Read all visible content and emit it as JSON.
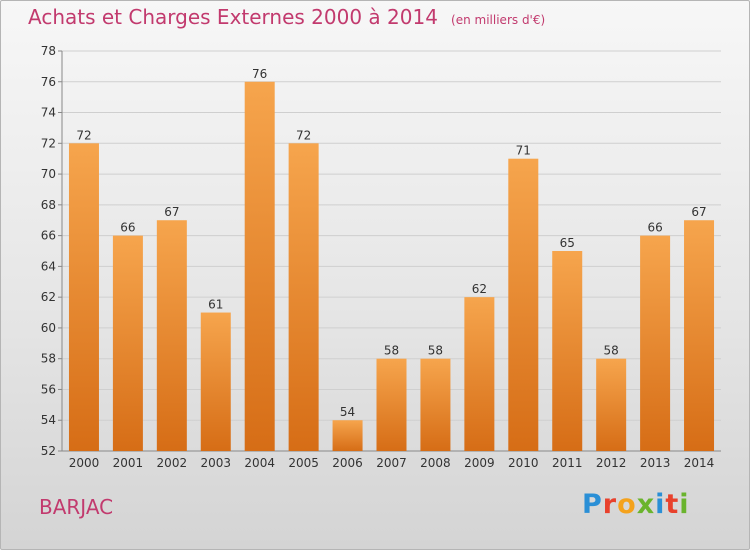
{
  "header": {
    "title": "Achats et Charges Externes 2000 à 2014",
    "unit": "(en milliers d'€)"
  },
  "commune": "BARJAC",
  "logo": {
    "text": "Proxiti",
    "colors": [
      "#2a8fd6",
      "#e8412c",
      "#f4a21c",
      "#6ab42d",
      "#2a8fd6",
      "#e8412c",
      "#6ab42d"
    ]
  },
  "colors": {
    "title": "#c23a6e",
    "bar_top": "#f6a54d",
    "bar_bottom": "#d66d16"
  },
  "chart_data": {
    "type": "bar",
    "title": "Achats et Charges Externes 2000 à 2014",
    "categories": [
      "2000",
      "2001",
      "2002",
      "2003",
      "2004",
      "2005",
      "2006",
      "2007",
      "2008",
      "2009",
      "2010",
      "2011",
      "2012",
      "2013",
      "2014"
    ],
    "values": [
      72,
      66,
      67,
      61,
      76,
      72,
      54,
      58,
      58,
      62,
      71,
      65,
      58,
      66,
      67
    ],
    "ylim": [
      52,
      78
    ],
    "yticks": [
      52,
      54,
      56,
      58,
      60,
      62,
      64,
      66,
      68,
      70,
      72,
      74,
      76,
      78
    ],
    "grid": true,
    "data_labels": true
  }
}
